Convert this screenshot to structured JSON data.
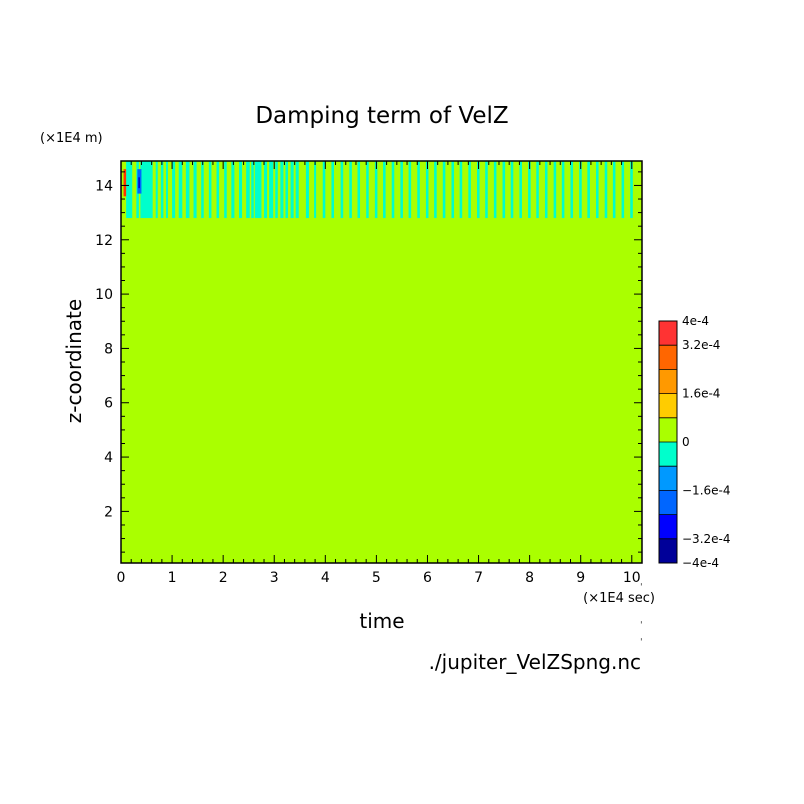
{
  "chart_data": {
    "type": "heatmap",
    "title": "Damping term of VelZ",
    "xlabel": "time",
    "ylabel": "z-coordinate",
    "x_unit_label": "(×1E4 sec)",
    "y_unit_label": "(×1E4 m)",
    "source_file": "./jupiter_VelZSpng.nc",
    "xlim": [
      0,
      10.2
    ],
    "ylim": [
      0.1,
      14.9
    ],
    "x_ticks": [
      0,
      1,
      2,
      3,
      4,
      5,
      6,
      7,
      8,
      9,
      10
    ],
    "y_ticks": [
      2,
      4,
      6,
      8,
      10,
      12,
      14
    ],
    "background_value_color": "#aaff00",
    "sponge_layer": {
      "z_bottom": 12.8,
      "z_top": 14.9,
      "stripe_color": "#00ffcc",
      "stripes_x": [
        [
          0.1,
          0.22
        ],
        [
          0.3,
          0.35
        ],
        [
          0.38,
          0.62
        ],
        [
          0.68,
          0.72
        ],
        [
          0.78,
          0.83
        ],
        [
          0.88,
          0.92
        ],
        [
          1.0,
          1.06
        ],
        [
          1.13,
          1.2
        ],
        [
          1.27,
          1.34
        ],
        [
          1.42,
          1.48
        ],
        [
          1.57,
          1.62
        ],
        [
          1.72,
          1.77
        ],
        [
          1.87,
          1.92
        ],
        [
          2.02,
          2.07
        ],
        [
          2.16,
          2.22
        ],
        [
          2.31,
          2.37
        ],
        [
          2.45,
          2.52
        ],
        [
          2.55,
          2.6
        ],
        [
          2.62,
          2.75
        ],
        [
          2.8,
          2.86
        ],
        [
          2.9,
          2.98
        ],
        [
          3.02,
          3.07
        ],
        [
          3.12,
          3.18
        ],
        [
          3.22,
          3.27
        ],
        [
          3.32,
          3.38
        ],
        [
          3.42,
          3.48
        ],
        [
          3.62,
          3.68
        ],
        [
          3.78,
          3.82
        ],
        [
          3.95,
          4.0
        ],
        [
          4.12,
          4.17
        ],
        [
          4.3,
          4.35
        ],
        [
          4.47,
          4.52
        ],
        [
          4.63,
          4.68
        ],
        [
          4.8,
          4.85
        ],
        [
          4.97,
          5.02
        ],
        [
          5.13,
          5.18
        ],
        [
          5.3,
          5.35
        ],
        [
          5.47,
          5.52
        ],
        [
          5.63,
          5.68
        ],
        [
          5.8,
          5.85
        ],
        [
          5.97,
          6.02
        ],
        [
          6.13,
          6.18
        ],
        [
          6.3,
          6.35
        ],
        [
          6.47,
          6.52
        ],
        [
          6.63,
          6.68
        ],
        [
          6.8,
          6.85
        ],
        [
          6.97,
          7.02
        ],
        [
          7.13,
          7.18
        ],
        [
          7.3,
          7.35
        ],
        [
          7.47,
          7.52
        ],
        [
          7.63,
          7.68
        ],
        [
          7.8,
          7.85
        ],
        [
          7.97,
          8.02
        ],
        [
          8.13,
          8.18
        ],
        [
          8.3,
          8.35
        ],
        [
          8.47,
          8.52
        ],
        [
          8.63,
          8.68
        ],
        [
          8.8,
          8.85
        ],
        [
          8.97,
          9.02
        ],
        [
          9.13,
          9.18
        ],
        [
          9.3,
          9.35
        ],
        [
          9.47,
          9.52
        ],
        [
          9.63,
          9.68
        ],
        [
          9.8,
          9.85
        ],
        [
          9.97,
          10.02
        ]
      ],
      "accents": [
        {
          "x": [
            0.05,
            0.1
          ],
          "z": [
            13.6,
            14.6
          ],
          "color": "#ff3300"
        },
        {
          "x": [
            0.32,
            0.4
          ],
          "z": [
            13.7,
            14.6
          ],
          "color": "#0066ff"
        },
        {
          "x": [
            0.34,
            0.37
          ],
          "z": [
            13.9,
            14.3
          ],
          "color": "#0000cc"
        }
      ]
    },
    "colorbar": {
      "levels": [
        -0.0004,
        -0.00032,
        -0.00024,
        -0.00016,
        -8e-05,
        0,
        8e-05,
        0.00016,
        0.00024,
        0.00032,
        0.0004
      ],
      "colors": [
        "#000099",
        "#0000ff",
        "#0066ff",
        "#0099ff",
        "#00ffcc",
        "#aaff00",
        "#ffcc00",
        "#ff9900",
        "#ff6600",
        "#ff3333"
      ],
      "tick_labels": [
        {
          "value": 0.0004,
          "label": "4e-4"
        },
        {
          "value": 0.00032,
          "label": "3.2e-4"
        },
        {
          "value": 0.00016,
          "label": "1.6e-4"
        },
        {
          "value": 0,
          "label": "0"
        },
        {
          "value": -0.00016,
          "label": "−1.6e-4"
        },
        {
          "value": -0.00032,
          "label": "−3.2e-4"
        },
        {
          "value": -0.0004,
          "label": "−4e-4"
        }
      ]
    }
  }
}
